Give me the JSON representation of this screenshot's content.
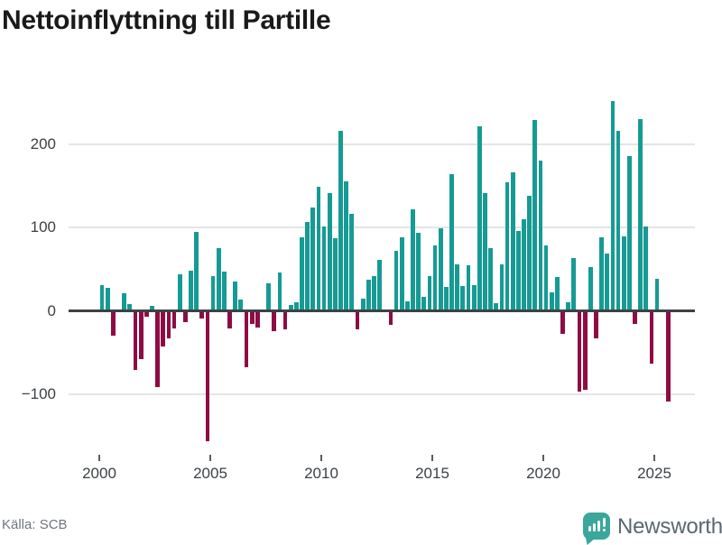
{
  "title": "Nettoinflyttning till Partille",
  "footer": {
    "source": "Källa: SCB",
    "brand": "Newsworthy"
  },
  "colors": {
    "positive": "#169B94",
    "negative": "#8E0C44",
    "title": "#1A1A1A",
    "tick_label": "#3D4144",
    "gridline": "#E5E5E5",
    "zero_line": "#3E4145",
    "source_text": "#70757C",
    "brand_text": "#5A6872",
    "brand_icon": "#3BA79B"
  },
  "chart_data": {
    "type": "bar",
    "title": "Nettoinflyttning till Partille",
    "xlabel": "",
    "ylabel": "",
    "x_interval": "quarter",
    "x_tick_labels": [
      "2000",
      "2005",
      "2010",
      "2015",
      "2020",
      "2025"
    ],
    "y_ticks": [
      200,
      100,
      0,
      -100
    ],
    "y_tick_labels": [
      "200",
      "100",
      "0",
      "−100"
    ],
    "ylim": [
      -165,
      260
    ],
    "grid": "horizontal",
    "legend": "none",
    "categories": [
      "2000Q1",
      "2000Q2",
      "2000Q3",
      "2000Q4",
      "2001Q1",
      "2001Q2",
      "2001Q3",
      "2001Q4",
      "2002Q1",
      "2002Q2",
      "2002Q3",
      "2002Q4",
      "2003Q1",
      "2003Q2",
      "2003Q3",
      "2003Q4",
      "2004Q1",
      "2004Q2",
      "2004Q3",
      "2004Q4",
      "2005Q1",
      "2005Q2",
      "2005Q3",
      "2005Q4",
      "2006Q1",
      "2006Q2",
      "2006Q3",
      "2006Q4",
      "2007Q1",
      "2007Q2",
      "2007Q3",
      "2007Q4",
      "2008Q1",
      "2008Q2",
      "2008Q3",
      "2008Q4",
      "2009Q1",
      "2009Q2",
      "2009Q3",
      "2009Q4",
      "2010Q1",
      "2010Q2",
      "2010Q3",
      "2010Q4",
      "2011Q1",
      "2011Q2",
      "2011Q3",
      "2011Q4",
      "2012Q1",
      "2012Q2",
      "2012Q3",
      "2012Q4",
      "2013Q1",
      "2013Q2",
      "2013Q3",
      "2013Q4",
      "2014Q1",
      "2014Q2",
      "2014Q3",
      "2014Q4",
      "2015Q1",
      "2015Q2",
      "2015Q3",
      "2015Q4",
      "2016Q1",
      "2016Q2",
      "2016Q3",
      "2016Q4",
      "2017Q1",
      "2017Q2",
      "2017Q3",
      "2017Q4",
      "2018Q1",
      "2018Q2",
      "2018Q3",
      "2018Q4",
      "2019Q1",
      "2019Q2",
      "2019Q3",
      "2019Q4",
      "2020Q1",
      "2020Q2",
      "2020Q3",
      "2020Q4",
      "2021Q1",
      "2021Q2",
      "2021Q3",
      "2021Q4",
      "2022Q1",
      "2022Q2",
      "2022Q3",
      "2022Q4",
      "2023Q1",
      "2023Q2",
      "2023Q3",
      "2023Q4",
      "2024Q1",
      "2024Q2",
      "2024Q3",
      "2024Q4",
      "2025Q1",
      "2025Q2",
      "2025Q3"
    ],
    "values": [
      29,
      26,
      -28,
      0,
      19,
      6,
      -69,
      -56,
      -5,
      4,
      -90,
      -41,
      -31,
      -19,
      42,
      -12,
      46,
      93,
      -8,
      -155,
      40,
      74,
      45,
      -19,
      34,
      12,
      -66,
      -14,
      -18,
      0,
      31,
      -23,
      44,
      -21,
      5,
      9,
      86,
      105,
      122,
      147,
      99,
      140,
      85,
      214,
      154,
      115,
      -21,
      13,
      36,
      40,
      60,
      0,
      -15,
      70,
      86,
      10,
      120,
      92,
      15,
      40,
      77,
      97,
      27,
      162,
      54,
      28,
      53,
      29,
      219,
      139,
      74,
      8,
      54,
      152,
      164,
      94,
      108,
      136,
      227,
      178,
      77,
      21,
      39,
      -26,
      9,
      62,
      -95,
      -93,
      51,
      -31,
      87,
      67,
      250,
      214,
      88,
      184,
      -14,
      228,
      100,
      -62,
      37,
      0,
      -107
    ]
  }
}
